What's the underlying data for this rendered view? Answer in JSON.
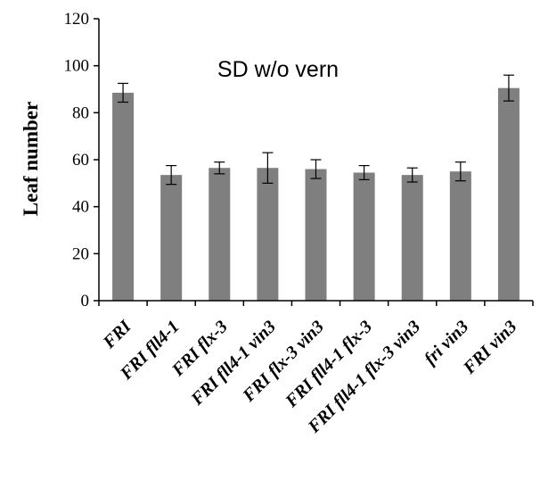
{
  "chart_data": {
    "type": "bar",
    "title": "SD w/o vern",
    "xlabel": "",
    "ylabel": "Leaf number",
    "ylim": [
      0,
      120
    ],
    "yticks": [
      0,
      20,
      40,
      60,
      80,
      100,
      120
    ],
    "grid": false,
    "categories": [
      "FRI",
      "FRI fll4-1",
      "FRI flx-3",
      "FRI fll4-1 vin3",
      "FRI flx-3 vin3",
      "FRI fll4-1 flx-3",
      "FRI fll4-1 flx-3 vin3",
      "fri vin3",
      "FRI vin3"
    ],
    "values": [
      88.5,
      53.5,
      56.5,
      56.5,
      56,
      54.5,
      53.5,
      55,
      90.5
    ],
    "errors": [
      4,
      4,
      2.5,
      6.5,
      4,
      3,
      3,
      4,
      5.5
    ],
    "bar_color": "#7f7f7f"
  }
}
